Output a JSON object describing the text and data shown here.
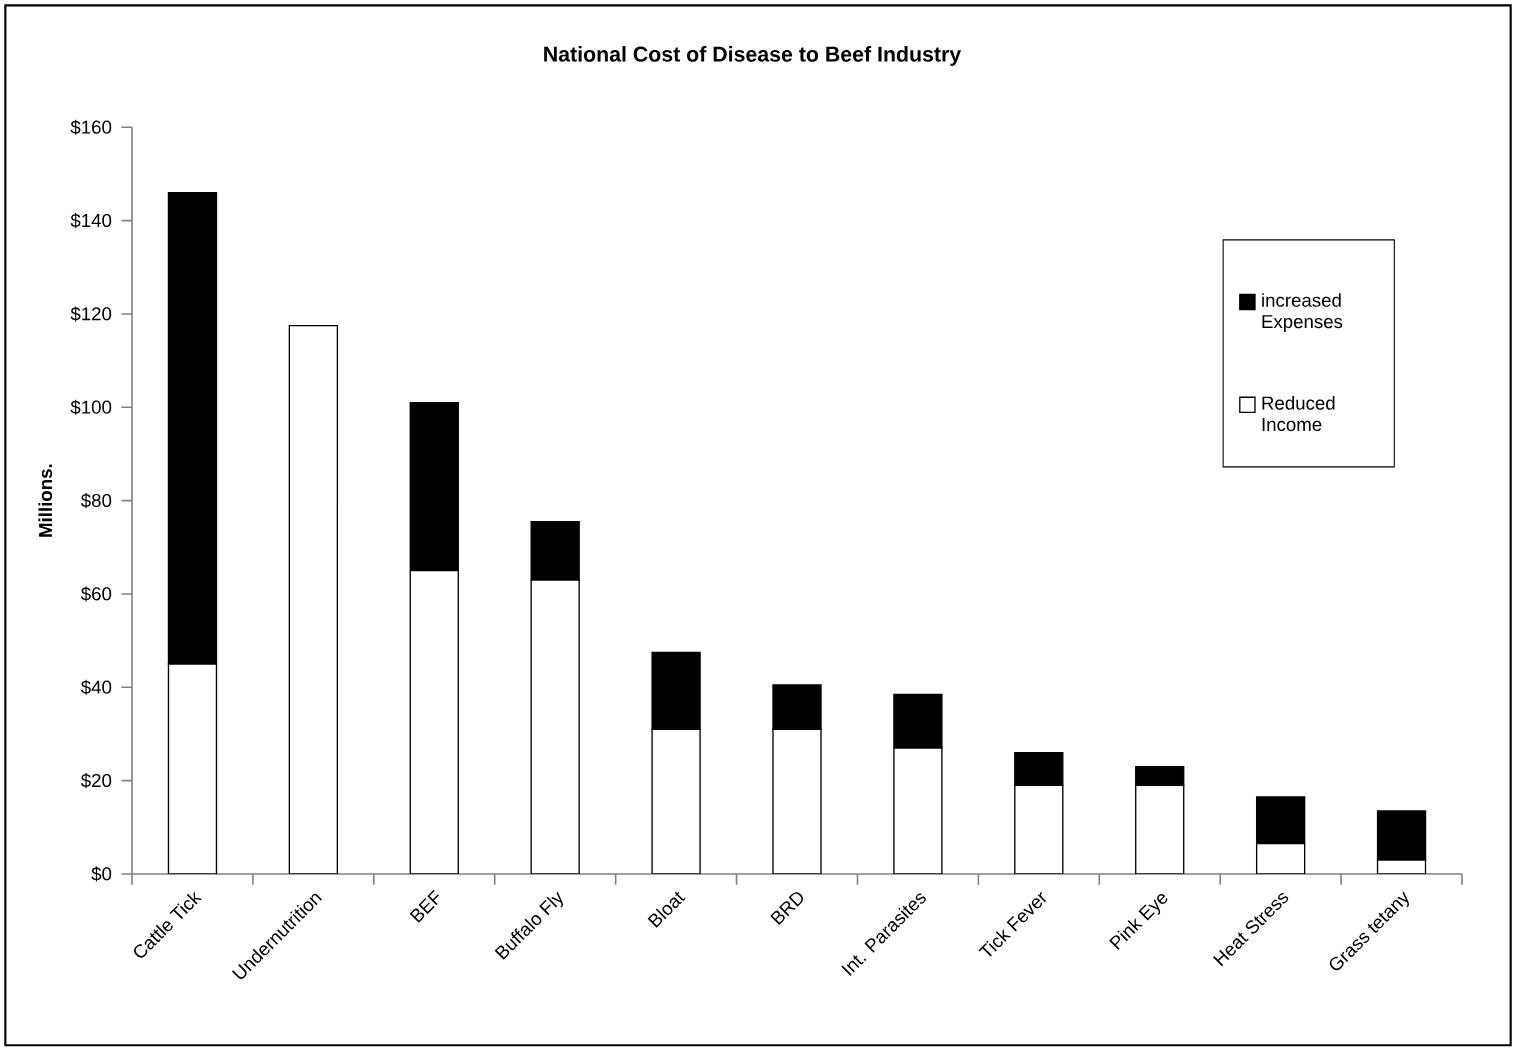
{
  "chart_data": {
    "type": "bar",
    "title": "National Cost of Disease to Beef Industry",
    "ylabel": "Millions.",
    "categories": [
      "Cattle Tick",
      "Undernutrition",
      "BEF",
      "Buffalo Fly",
      "Bloat",
      "BRD",
      "Int. Parasites",
      "Tick Fever",
      "Pink Eye",
      "Heat Stress",
      "Grass tetany"
    ],
    "stacked": true,
    "series": [
      {
        "name": "Reduced Income",
        "color": "#ffffff",
        "values": [
          45,
          117.5,
          65,
          63,
          31,
          31,
          27,
          19,
          19,
          6.5,
          3
        ]
      },
      {
        "name": "increased Expenses",
        "color": "#000000",
        "values": [
          101,
          0,
          36,
          12.5,
          16.5,
          9.5,
          11.5,
          7,
          4,
          10,
          10.5
        ]
      }
    ],
    "ylim": [
      0,
      160
    ],
    "yticks": [
      {
        "value": 0,
        "label": "$0"
      },
      {
        "value": 20,
        "label": "$20"
      },
      {
        "value": 40,
        "label": "$40"
      },
      {
        "value": 60,
        "label": "$60"
      },
      {
        "value": 80,
        "label": "$80"
      },
      {
        "value": 100,
        "label": "$100"
      },
      {
        "value": 120,
        "label": "$120"
      },
      {
        "value": 140,
        "label": "$140"
      },
      {
        "value": 160,
        "label": "$160"
      }
    ],
    "grid": false,
    "legend": "right"
  }
}
